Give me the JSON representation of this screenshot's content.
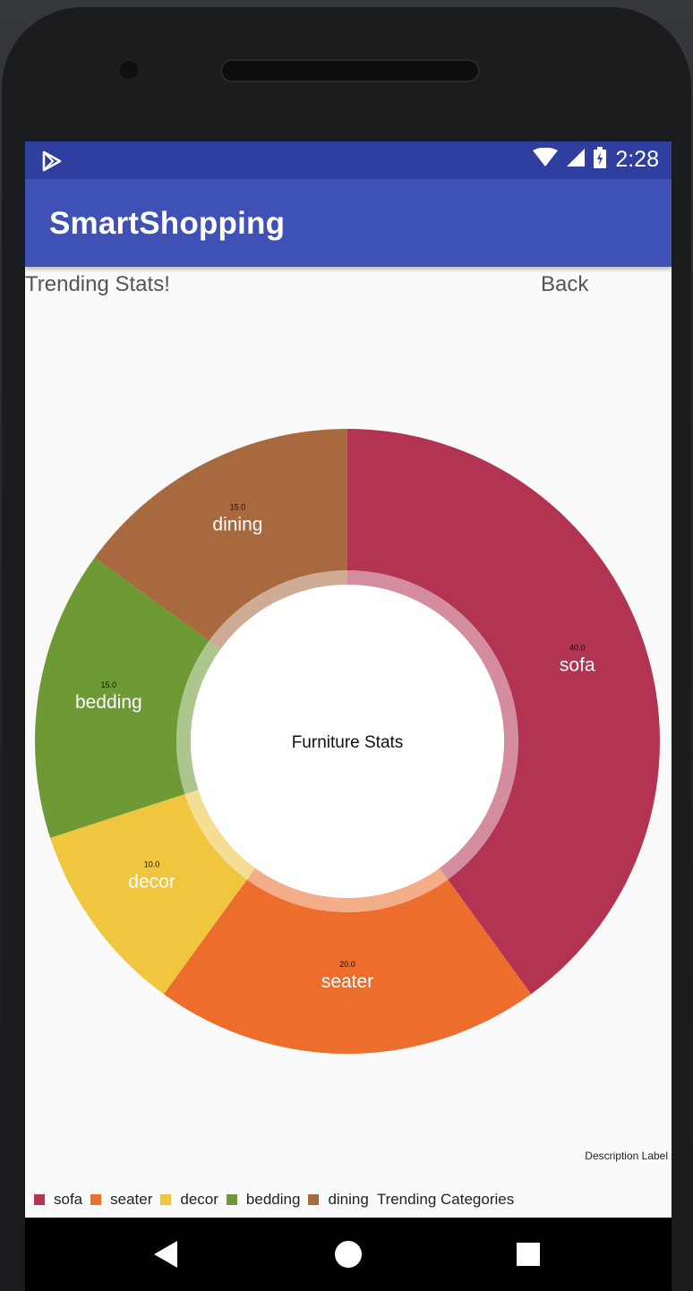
{
  "status_bar": {
    "time": "2:28"
  },
  "app_bar": {
    "title": "SmartShopping"
  },
  "header": {
    "title": "Trending Stats!",
    "back_label": "Back"
  },
  "chart_data": {
    "type": "pie",
    "subtype": "donut",
    "center_text": "Furniture Stats",
    "labels": [
      "sofa",
      "seater",
      "decor",
      "bedding",
      "dining"
    ],
    "values": [
      40.0,
      20.0,
      10.0,
      15.0,
      15.0
    ],
    "value_labels": [
      "40.0",
      "20.0",
      "10.0",
      "15.0",
      "15.0"
    ],
    "colors": [
      "#b23352",
      "#ec6d2c",
      "#f0c63f",
      "#6d9a34",
      "#a8693f"
    ],
    "legend_title": "Trending Categories",
    "legend_position": "bottom-left",
    "description": "Description Label"
  }
}
